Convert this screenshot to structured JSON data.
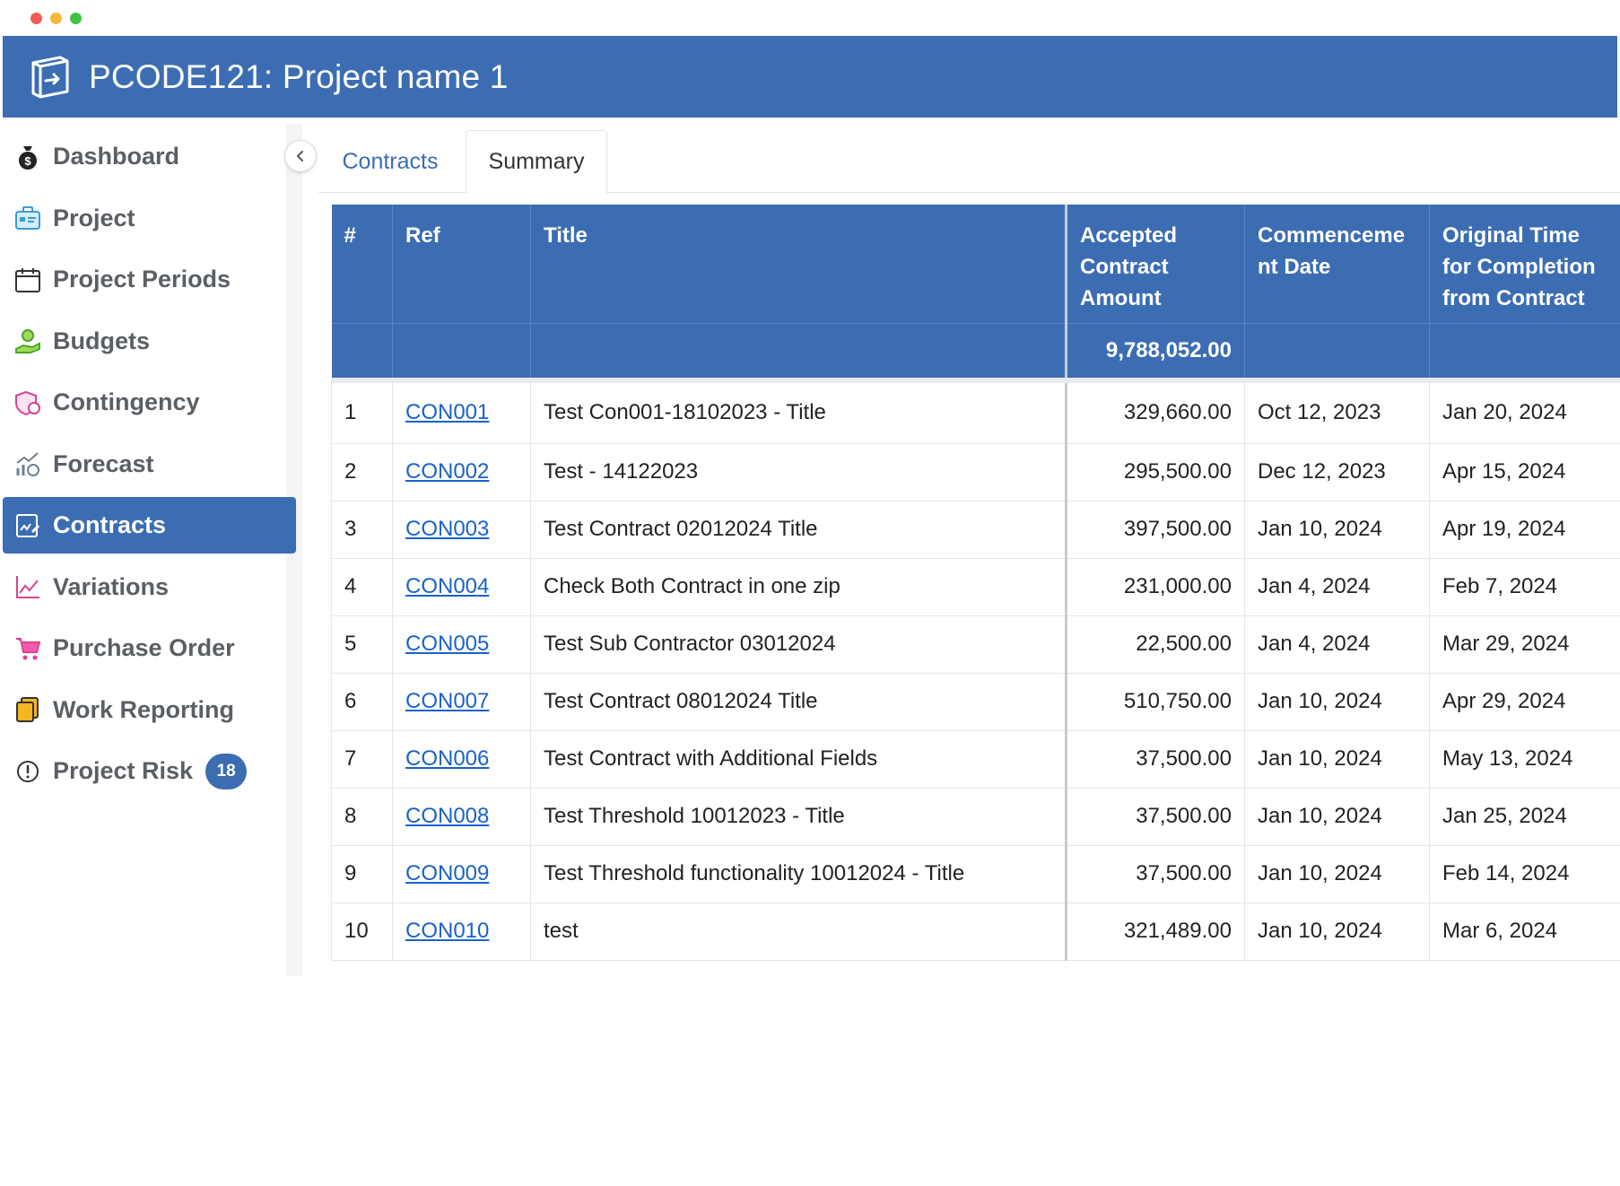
{
  "header": {
    "title": "PCODE121: Project name 1"
  },
  "sidebar": {
    "items": [
      {
        "label": "Dashboard",
        "icon": "money-bag-icon",
        "active": false
      },
      {
        "label": "Project",
        "icon": "briefcase-icon",
        "active": false
      },
      {
        "label": "Project Periods",
        "icon": "calendar-icon",
        "active": false
      },
      {
        "label": "Budgets",
        "icon": "hand-money-icon",
        "active": false
      },
      {
        "label": "Contingency",
        "icon": "shield-money-icon",
        "active": false
      },
      {
        "label": "Forecast",
        "icon": "forecast-chart-icon",
        "active": false
      },
      {
        "label": "Contracts",
        "icon": "contract-icon",
        "active": true
      },
      {
        "label": "Variations",
        "icon": "line-chart-icon",
        "active": false
      },
      {
        "label": "Purchase Order",
        "icon": "cart-icon",
        "active": false
      },
      {
        "label": "Work Reporting",
        "icon": "files-icon",
        "active": false
      },
      {
        "label": "Project Risk",
        "icon": "alert-icon",
        "active": false,
        "badge": "18"
      }
    ]
  },
  "tabs": [
    {
      "label": "Contracts",
      "active": true
    },
    {
      "label": "Summary",
      "active": false
    }
  ],
  "table": {
    "headers": [
      "#",
      "Ref",
      "Title",
      "Accepted Contract Amount",
      "Commenceme nt Date",
      "Original Time for Completion from Contract"
    ],
    "total_amount": "9,788,052.00",
    "rows": [
      {
        "num": "1",
        "ref": "CON001",
        "title": "Test Con001-18102023 - Title",
        "amount": "329,660.00",
        "commence": "Oct 12, 2023",
        "completion": "Jan 20, 2024"
      },
      {
        "num": "2",
        "ref": "CON002",
        "title": "Test - 14122023",
        "amount": "295,500.00",
        "commence": "Dec 12, 2023",
        "completion": "Apr 15, 2024"
      },
      {
        "num": "3",
        "ref": "CON003",
        "title": "Test Contract 02012024 Title",
        "amount": "397,500.00",
        "commence": "Jan 10, 2024",
        "completion": "Apr 19, 2024"
      },
      {
        "num": "4",
        "ref": "CON004",
        "title": "Check Both Contract in one zip",
        "amount": "231,000.00",
        "commence": "Jan 4, 2024",
        "completion": "Feb 7, 2024"
      },
      {
        "num": "5",
        "ref": "CON005",
        "title": "Test Sub Contractor 03012024",
        "amount": "22,500.00",
        "commence": "Jan 4, 2024",
        "completion": "Mar 29, 2024"
      },
      {
        "num": "6",
        "ref": "CON007",
        "title": "Test Contract 08012024 Title",
        "amount": "510,750.00",
        "commence": "Jan 10, 2024",
        "completion": "Apr 29, 2024"
      },
      {
        "num": "7",
        "ref": "CON006",
        "title": "Test Contract with Additional Fields",
        "amount": "37,500.00",
        "commence": "Jan 10, 2024",
        "completion": "May 13, 2024"
      },
      {
        "num": "8",
        "ref": "CON008",
        "title": "Test Threshold 10012023 - Title",
        "amount": "37,500.00",
        "commence": "Jan 10, 2024",
        "completion": "Jan 25, 2024"
      },
      {
        "num": "9",
        "ref": "CON009",
        "title": "Test Threshold functionality 10012024 - Title",
        "amount": "37,500.00",
        "commence": "Jan 10, 2024",
        "completion": "Feb 14, 2024"
      },
      {
        "num": "10",
        "ref": "CON010",
        "title": "test",
        "amount": "321,489.00",
        "commence": "Jan 10, 2024",
        "completion": "Mar 6, 2024"
      }
    ]
  }
}
